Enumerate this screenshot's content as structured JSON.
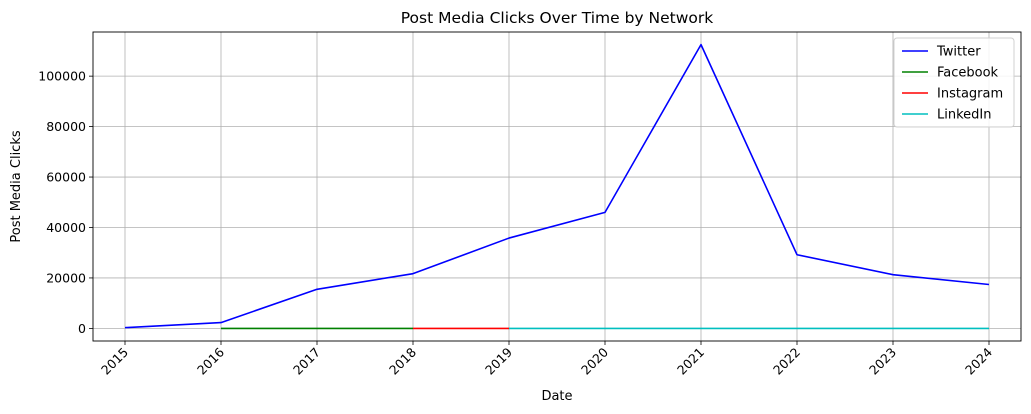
{
  "chart_data": {
    "type": "line",
    "title": "Post Media Clicks Over Time by Network",
    "xlabel": "Date",
    "ylabel": "Post Media Clicks",
    "x": [
      "2015",
      "2016",
      "2017",
      "2018",
      "2019",
      "2020",
      "2021",
      "2022",
      "2023",
      "2024"
    ],
    "xlim": [
      "2014-09",
      "2024-05"
    ],
    "ylim": [
      -5000,
      117500
    ],
    "yticks": [
      0,
      20000,
      40000,
      60000,
      80000,
      100000
    ],
    "grid": true,
    "legend_position": "top-right",
    "series": [
      {
        "name": "Twitter",
        "color": "#0000ff",
        "points": [
          [
            "2015",
            300
          ],
          [
            "2016",
            2300
          ],
          [
            "2017",
            15500
          ],
          [
            "2018",
            21700
          ],
          [
            "2019",
            35800
          ],
          [
            "2020",
            46000
          ],
          [
            "2021",
            112500
          ],
          [
            "2022",
            29200
          ],
          [
            "2023",
            21300
          ],
          [
            "2024",
            17400
          ]
        ]
      },
      {
        "name": "Facebook",
        "color": "#008000",
        "points": [
          [
            "2016",
            0
          ],
          [
            "2017",
            0
          ],
          [
            "2018",
            0
          ]
        ]
      },
      {
        "name": "Instagram",
        "color": "#ff0000",
        "points": [
          [
            "2018",
            0
          ],
          [
            "2019",
            0
          ]
        ]
      },
      {
        "name": "LinkedIn",
        "color": "#00bfbf",
        "points": [
          [
            "2019",
            0
          ],
          [
            "2020",
            0
          ],
          [
            "2021",
            0
          ],
          [
            "2022",
            0
          ],
          [
            "2023",
            0
          ],
          [
            "2024",
            0
          ]
        ]
      }
    ]
  }
}
